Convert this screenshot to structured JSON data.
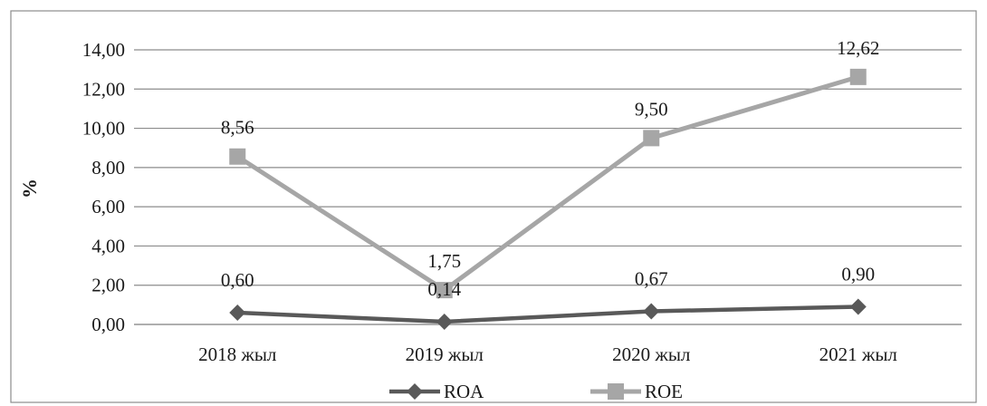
{
  "chart_data": {
    "type": "line",
    "categories": [
      "2018 жыл",
      "2019 жыл",
      "2020 жыл",
      "2021 жыл"
    ],
    "series": [
      {
        "name": "ROA",
        "values": [
          0.6,
          0.14,
          0.67,
          0.9
        ],
        "labels": [
          "0,60",
          "0,14",
          "0,67",
          "0,90"
        ],
        "color": "#595959",
        "marker": "diamond"
      },
      {
        "name": "ROE",
        "values": [
          8.56,
          1.75,
          9.5,
          12.62
        ],
        "labels": [
          "8,56",
          "1,75",
          "9,50",
          "12,62"
        ],
        "color": "#a6a6a6",
        "marker": "square"
      }
    ],
    "ylabel": "%",
    "xlabel": "",
    "ylim": [
      0,
      14
    ],
    "yticks": [
      0,
      2,
      4,
      6,
      8,
      10,
      12,
      14
    ],
    "ytick_labels": [
      "0,00",
      "2,00",
      "4,00",
      "6,00",
      "8,00",
      "10,00",
      "12,00",
      "14,00"
    ],
    "grid": true,
    "legend_position": "bottom"
  }
}
